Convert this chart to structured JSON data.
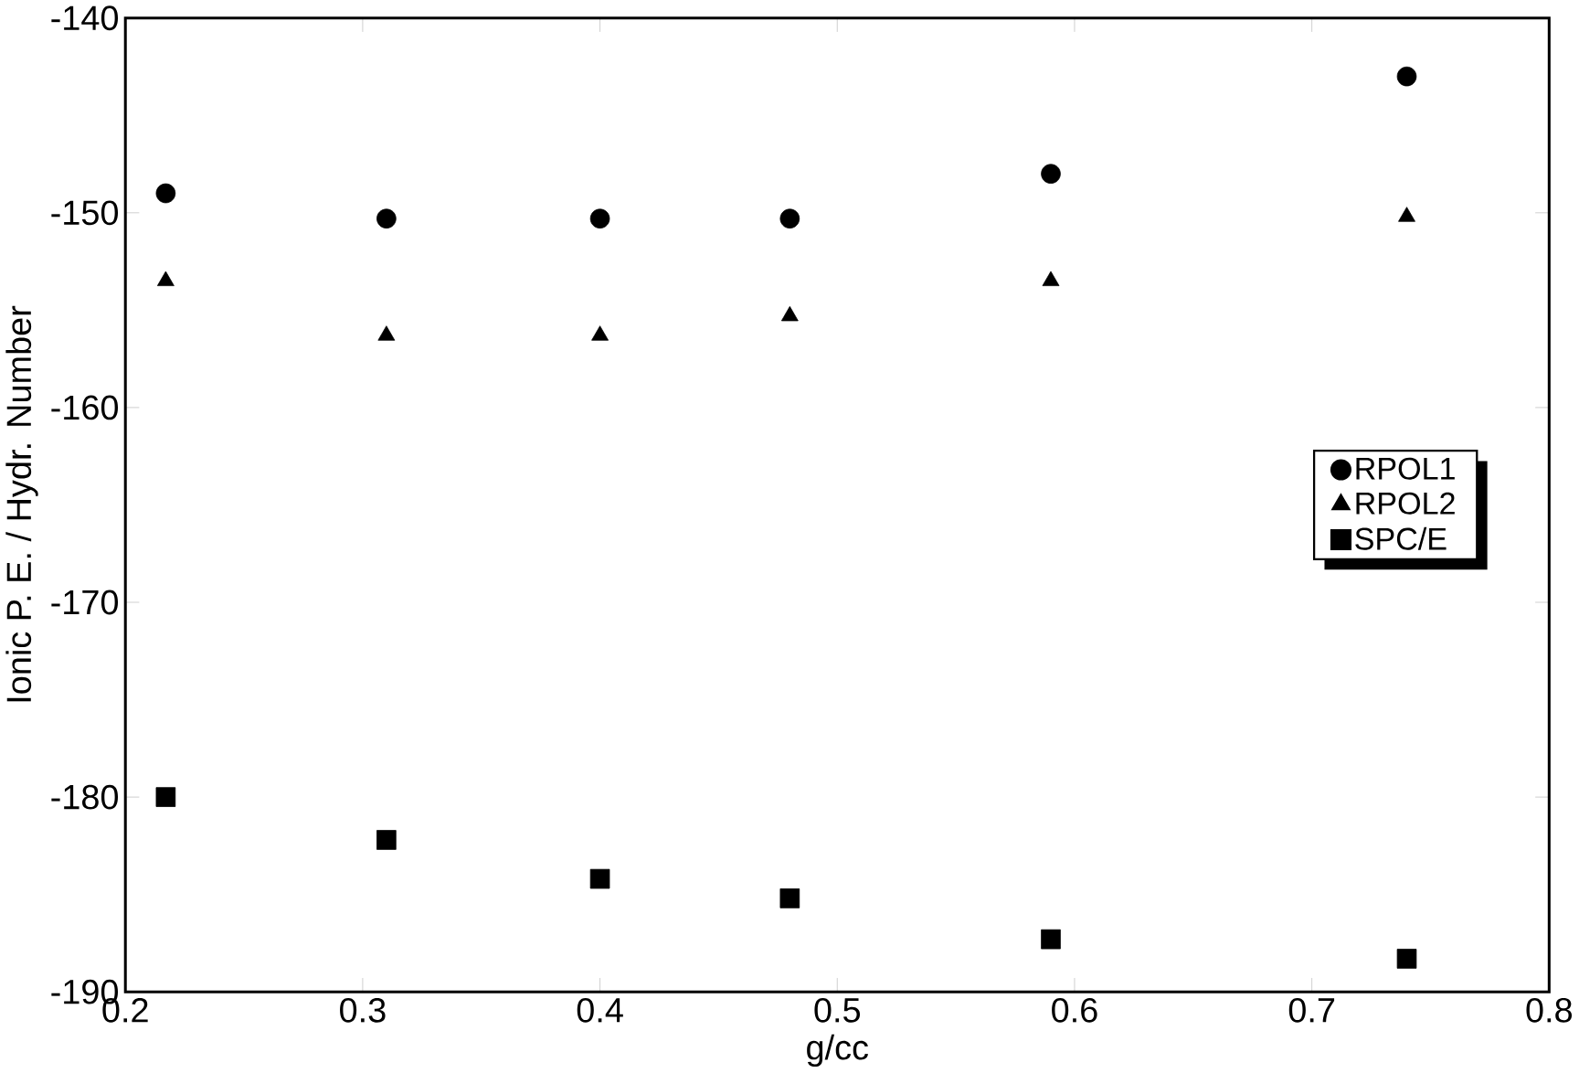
{
  "chart_data": {
    "type": "scatter",
    "xlabel": "g/cc",
    "ylabel": "Ionic P. E. / Hydr. Number",
    "x": [
      0.217,
      0.31,
      0.4,
      0.48,
      0.59,
      0.74
    ],
    "series": [
      {
        "name": "RPOL1",
        "color": "#000000",
        "marker": "circle",
        "values": [
          -149,
          -150.3,
          -150.3,
          -150.3,
          -148,
          -143
        ]
      },
      {
        "name": "RPOL2",
        "color": "#000000",
        "marker": "triangle",
        "values": [
          -153.5,
          -156.3,
          -156.3,
          -155.3,
          -153.5,
          -150.2
        ]
      },
      {
        "name": "SPC/E",
        "color": "#000000",
        "marker": "square",
        "values": [
          -180,
          -182.2,
          -184.2,
          -185.2,
          -187.3,
          -188.3
        ]
      }
    ],
    "xlim": [
      0.2,
      0.8
    ],
    "xticks": [
      0.2,
      0.3,
      0.4,
      0.5,
      0.6,
      0.7,
      0.8
    ],
    "ylim": [
      -190,
      -140
    ],
    "yticks": [
      -190,
      -180,
      -170,
      -160,
      -150,
      -140
    ],
    "legend": "right",
    "grid": false
  }
}
